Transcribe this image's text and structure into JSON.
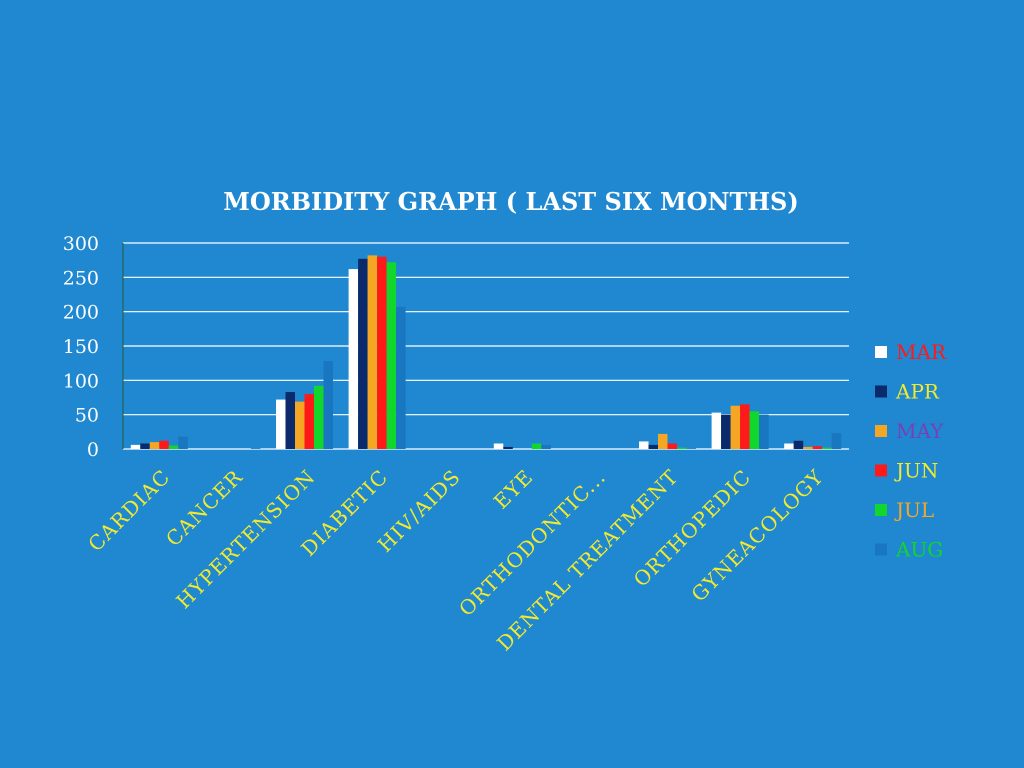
{
  "chart_data": {
    "type": "bar",
    "title": "MORBIDITY GRAPH ( LAST SIX MONTHS)",
    "xlabel": "",
    "ylabel": "",
    "ylim": [
      0,
      300
    ],
    "yticks": [
      0,
      50,
      100,
      150,
      200,
      250,
      300
    ],
    "grid": true,
    "legend_position": "right",
    "categories": [
      "CARDIAC",
      "CANCER",
      "HYPERTENSION",
      "DIABETIC",
      "HIV/AIDS",
      "EYE",
      "ORTHODONTIC...",
      "DENTAL TREATMENT",
      "ORTHOPEDIC",
      "GYNEACOLOGY"
    ],
    "series": [
      {
        "name": "MAR",
        "color": "#ffffff",
        "label_color": "#ff1a1a",
        "values": [
          6,
          0,
          72,
          262,
          0,
          8,
          0,
          11,
          53,
          8
        ]
      },
      {
        "name": "APR",
        "color": "#0a2a6b",
        "label_color": "#f2ea2e",
        "values": [
          8,
          0,
          83,
          277,
          0,
          3,
          0,
          6,
          50,
          12
        ]
      },
      {
        "name": "MAY",
        "color": "#f5a623",
        "label_color": "#7a3fb8",
        "values": [
          10,
          0,
          69,
          282,
          0,
          0,
          0,
          22,
          63,
          3
        ]
      },
      {
        "name": "JUN",
        "color": "#ff1a1a",
        "label_color": "#f2ea2e",
        "values": [
          12,
          0,
          80,
          280,
          0,
          0,
          0,
          8,
          65,
          4
        ]
      },
      {
        "name": "JUL",
        "color": "#11d62c",
        "label_color": "#f5a623",
        "values": [
          5,
          0,
          92,
          272,
          0,
          8,
          0,
          2,
          55,
          2
        ]
      },
      {
        "name": "AUG",
        "color": "#1877c0",
        "label_color": "#11d62c",
        "values": [
          18,
          1,
          128,
          207,
          0,
          6,
          0,
          1,
          50,
          23
        ]
      }
    ]
  }
}
